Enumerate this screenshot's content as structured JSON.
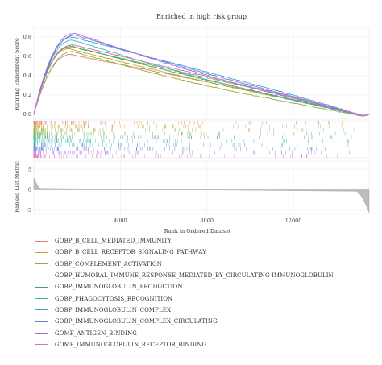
{
  "chart_data": {
    "type": "line",
    "title": "Enriched in high risk group",
    "xlabel": "Rank in Ordered Dataset",
    "ylabel_top": "Running Enrichment Score",
    "ylabel_bottom": "Ranked List Metric",
    "x_ticks": [
      "4000",
      "8000",
      "12000"
    ],
    "x_tick_values": [
      4000,
      8000,
      12000
    ],
    "xlim": [
      0,
      15500
    ],
    "es_ylim": [
      -0.05,
      0.9
    ],
    "es_yticks": [
      "0.0",
      "0.2",
      "0.4",
      "0.6",
      "0.8"
    ],
    "es_ytick_values": [
      0.0,
      0.2,
      0.4,
      0.6,
      0.8
    ],
    "metric_ylim": [
      -6,
      7
    ],
    "metric_yticks": [
      "5",
      "0",
      "-5"
    ],
    "metric_ytick_values": [
      5,
      0,
      -5
    ],
    "series": [
      {
        "name": "GOBP_B_CELL_MEDIATED_IMMUNITY",
        "color": "#e07f6f",
        "peak_x": 1700,
        "peak_y": 0.62
      },
      {
        "name": "GOBP_B_CELL_RECEPTOR_SIGNALING_PATHWAY",
        "color": "#c9a227",
        "peak_x": 1600,
        "peak_y": 0.68
      },
      {
        "name": "GOBP_COMPLEMENT_ACTIVATION",
        "color": "#9aa83a",
        "peak_x": 1800,
        "peak_y": 0.65
      },
      {
        "name": "GOBP_HUMORAL_IMMUNE_RESPONSE_MEDIATED_BY_CIRCULATING IMMUNOGLOBULIN",
        "color": "#6aae44",
        "peak_x": 1700,
        "peak_y": 0.7
      },
      {
        "name": "GOBP_IMMUNOGLOBULIN_PRODUCTION",
        "color": "#3aa56c",
        "peak_x": 1700,
        "peak_y": 0.71
      },
      {
        "name": "GOBP_PHAGOCYTOSIS_RECOGNITION",
        "color": "#3dbab0",
        "peak_x": 1800,
        "peak_y": 0.77
      },
      {
        "name": "GOBP_IMMUNOGLOBULIN_COMPLEX",
        "color": "#4a9fd8",
        "peak_x": 1800,
        "peak_y": 0.8
      },
      {
        "name": "GOBP_IMMUNOGLOBULIN_COMPLEX_CIRCULATING",
        "color": "#6b7fd6",
        "peak_x": 1900,
        "peak_y": 0.82
      },
      {
        "name": "GOMF_ANTIGEN_BINDING",
        "color": "#a56de0",
        "peak_x": 1900,
        "peak_y": 0.84
      },
      {
        "name": "GOMF_IMMUNOGLOBULIN_RECEPTOR_BINDING",
        "color": "#e06ac0",
        "peak_x": 1800,
        "peak_y": 0.72
      }
    ]
  }
}
